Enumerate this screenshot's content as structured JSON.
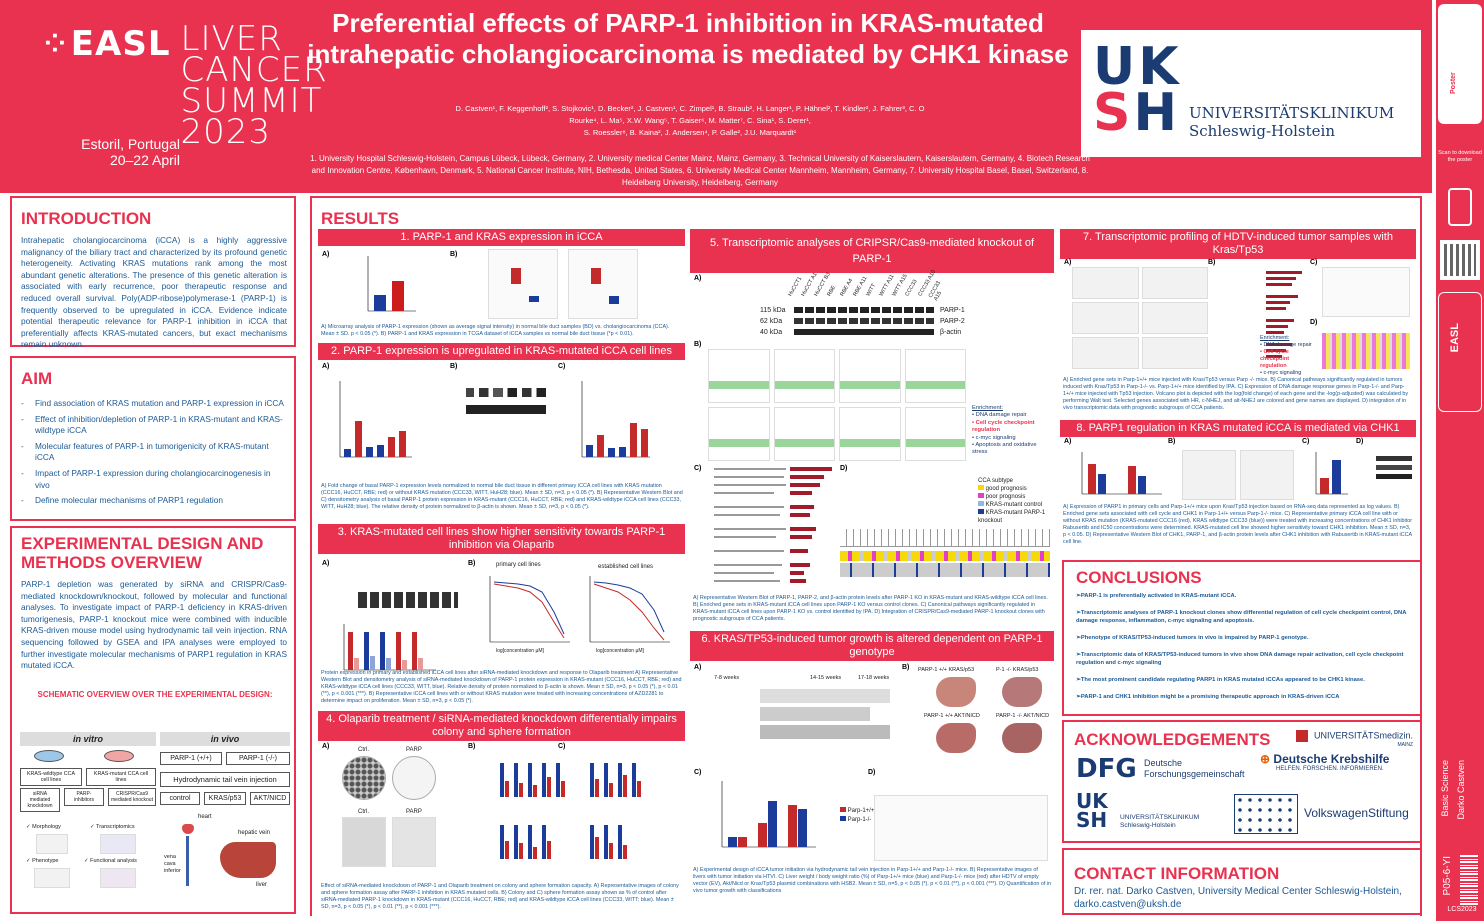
{
  "header": {
    "title": "Preferential effects of PARP-1 inhibition in KRAS-mutated intrahepatic cholangiocarcinoma is mediated by CHK1 kinase",
    "authors_line1": "D. Castven¹, F. Keggenhoff², S. Stojkovic¹, D. Becker², J. Castven¹, C. Zimpel¹, B. Straub², H. Langer¹, P. Hähnel², T. Kindler², J. Fahrer³, C. O",
    "authors_line2": "Rourke⁴, L. Ma⁵, X.W. Wang⁵, T. Gaiser⁶, M. Matter⁷, C. Sina¹, S. Derer¹,",
    "authors_line3": "S. Roessler⁸, B. Kaina², J. Andersen⁴, P. Galle², J.U. Marquardt¹",
    "affiliations": "1. University Hospital Schleswig-Holstein, Campus Lübeck, Lübeck, Germany, 2. University medical Center Mainz, Mainz, Germany, 3. Technical University of Kaiserslautern, Kaiserslautern, Germany, 4. Biotech Research and Innovation Centre, København, Denmark, 5. National Cancer Institute, NIH, Bethesda, United States, 6. University Medical Center Mannheim, Mannheim, Germany, 7. University Hospital Basel, Basel, Switzerland, 8. Heidelberg University, Heidelberg, Germany"
  },
  "easl": {
    "mark": "EASL",
    "event1": "LIVER",
    "event2": "CANCER",
    "event3": "SUMMIT",
    "location": "Estoril, Portugal",
    "dates": "20–22 April",
    "year": "2023"
  },
  "uksh": {
    "line1": "UK",
    "line2": "SH",
    "name1": "UNIVERSITÄTSKLINIKUM",
    "name2": "Schleswig-Holstein"
  },
  "sidebar": {
    "scan": "Scan to download the poster",
    "category": "Basic Science",
    "author": "Darko Castven",
    "poster_id": "P05-6-YI",
    "code": "LCS2023"
  },
  "introduction": {
    "title": "INTRODUCTION",
    "text": "Intrahepatic cholangiocarcinoma (iCCA) is a highly aggressive malignancy of the biliary tract and characterized by its profound genetic heterogeneity. Activating KRAS mutations rank among the most abundant genetic alterations. The presence of this genetic alteration is associated with early recurrence, poor therapeutic response and reduced overall survival. Poly(ADP-ribose)polymerase-1 (PARP-1) is frequently observed to be upregulated in iCCA. Evidence indicate potential therapeutic relevance for PARP-1 inhibition in iCCA that preferentially affects KRAS-mutated cancers, but exact mechanisms remain unknown."
  },
  "aim": {
    "title": "AIM",
    "items": [
      "Find association of KRAS mutation and PARP-1 expression in iCCA",
      "Effect of inhibition/depletion of PARP-1 in KRAS-mutant and KRAS-wildtype iCCA",
      "Molecular features of PARP-1 in tumorigenicity of KRAS-mutant iCCA",
      "Impact of PARP-1 expression during cholangiocarcinogenesis in vivo",
      "Define molecular mechanisms of PARP1 regulation"
    ]
  },
  "methods": {
    "title": "EXPERIMENTAL DESIGN AND METHODS OVERVIEW",
    "text": "PARP-1 depletion was generated by siRNA and CRISPR/Cas9-mediated knockdown/knockout, followed by molecular and functional analyses. To investigate impact of PARP-1 deficiency in KRAS-driven tumorigenesis, PARP-1 knockout mice were combined with inducible KRAS-driven mouse model using hydrodynamic tail vein injection. RNA sequencing followed by GSEA and IPA analyses were employed to further investigate molecular mechanisms of PARP1 regulation in KRAS mutated iCCA.",
    "schematic_title": "SCHEMATIC OVERVIEW  OVER THE EXPERIMENTAL DESIGN:",
    "in_vitro": "in vitro",
    "in_vivo": "in vivo",
    "wt_lines": "KRAS-wildtype CCA cell lines",
    "mut_lines": "KRAS-mutant CCA cell lines",
    "sirna": "siRNA mediated knockdown",
    "parp_inh": "PARP-inhibitors",
    "crispr": "CRISPR/Cas9 mediated knockout",
    "morph": "✓ Morphology",
    "transcript": "✓ Transcriptomics",
    "pheno": "✓ Phenotype",
    "func": "✓ Functional analysis",
    "parp_pos": "PARP-1 (+/+)",
    "parp_neg": "PARP-1 (-/-)",
    "hydro": "Hydrodynamic tail vein injection",
    "control": "control",
    "krasp53": "KRAS/p53",
    "aktnicd": "AKT/NICD",
    "heart": "heart",
    "hepatic": "hepatic vein",
    "vena": "vena cava inferior",
    "liver": "liver"
  },
  "results": {
    "title": "RESULTS",
    "s1": {
      "title": "1. PARP-1 and KRAS expression in iCCA",
      "caption": "A) Microarray analysis of PARP-1 expression (shown as average signal intensity) in normal bile duct samples (BD) vs. cholangiocarcinoma (CCA). Mean ± SD. p < 0.05 (*). B) PARP-1 and KRAS expression in TCGA dataset of iCCA samples vs normal bile duct tissue (*p < 0.01)."
    },
    "s2": {
      "title": "2. PARP-1 expression is upregulated in KRAS-mutated iCCA cell lines",
      "caption": "A) Fold change of basal PARP-1 expression levels normalized to normal bile duct tissue in different primary iCCA cell lines with KRAS mutation (CCC16, HuCCT, RBE; red) or without KRAS mutation (CCC33, WITT, HuH28; blue). Mean ± SD, n=3, p < 0.05 (*). B) Representative Western Blot and C) densitometry analysis of basal PARP-1 protein expression in KRAS-mutant (CCC16, HuCCT, RBE; red) and KRAS-wildtype iCCA cell lines (CCC33, WITT, HuH28; blue). The relative density of protein normalized to β-actin is shown. Mean ± SD, n=3, p < 0.05 (*)."
    },
    "s3": {
      "title": "3. KRAS-mutated cell lines show higher sensitivity towards PARP-1 inhibition via Olaparib",
      "caption": "Protein expression in primary and established iCCA cell lines after siRNA-mediated knockdown and response to Olaparib treatment A) Representative Western Blot and densitometry analysis of siRNA-mediated knockdown of PARP-1 protein expression in KRAS-mutant (CCC16, HuCCT, RBE; red) and KRAS-wildtype iCCA cell lines (CCC33, WITT, blue). Relative density of protein normalized to β-actin is shown. Mean ± SD, n=3, p < 0.05 (*), p < 0.01 (**), p < 0.001 (***). B) Representative iCCA cell lines with or without KRAS mutation were treated with increasing concentrations of AZD2281 to determine impact on proliferation. Mean ± SD, n=3, p < 0.05 (*).",
      "primary": "primary cell lines",
      "established": "established cell lines",
      "xlabel": "log[concentration µM]",
      "ylabel": "cell viability [% of control]"
    },
    "s4": {
      "title": "4. Olaparib treatment / siRNA-mediated knockdown differentially impairs colony and sphere formation",
      "caption": "Effect of siRNA-mediated knockdown of PARP-1 and Olaparib treatment on colony and sphere formation capacity. A) Representative images of colony and sphere formation assay after PARP-1 inhibition in KRAS mutated cells. B) Colony and C) sphere formation assay shown as % of control after siRNA-mediated PARP-1 knockdown in KRAS-mutant (CCC16, HuCCT, RBE; red) and KRAS-wildtype iCCA cell lines (CCC33, WITT; blue). Mean ± SD, n=3, p < 0.05 (*), p < 0.01 (**), p < 0.001 (***).",
      "ctrl": "Ctrl.",
      "parp": "PARP"
    },
    "s5": {
      "title": "5. Transcriptomic analyses of CRIPSR/Cas9-mediated knockout of PARP-1",
      "caption": "A) Representative Western Blot of PARP-1, PARP-2, and β-actin protein levels after PARP-1 KO in KRAS-mutant and KRAS-wildtype iCCA cell lines. B) Enriched gene sets in KRAS-mutant iCCA cell lines upon PARP-1 KO versus control clones. C) Canonical pathways significantly regulated in KRAS-mutant iCCA cell lines upon PARP-1 KO vs. control identified by IPA. D) Integration of CRISPR/Cas9-mediated PARP-1 knockout clones with prognostic subgroups of CCA patients.",
      "kda115": "115 kDa",
      "kda62": "62 kDa",
      "kda40": "40 kDa",
      "parp1": "PARP-1",
      "parp2": "PARP-2",
      "bactin": "β-actin",
      "lanes": [
        "HuCCT1",
        "HuCCT A1",
        "HuCCT B3",
        "RBE",
        "RBE A4",
        "RBE A11",
        "WITT",
        "WITT A11",
        "WITT A15",
        "CCC33",
        "CCC33 A10",
        "CCC33 A15"
      ],
      "enr_title": "Enrichment:",
      "enr1": "• DNA damage repair",
      "enr2": "• Cell cycle checkpoint regulation",
      "enr3": "• c-myc signaling",
      "enr4": "• Apoptosis and oxidative stress",
      "legend_title": "CCA subtype",
      "legend1": "good prognosis",
      "legend2": "poor prognosis",
      "legend3": "KRAS-mutant control",
      "legend4": "KRAS-mutant PARP-1 knockout"
    },
    "s6": {
      "title": "6. KRAS/TP53-induced tumor growth is altered dependent on PARP-1 genotype",
      "caption": "A) Experimental design of iCCA tumor initiation via hydrodynamic tail vein injection in Parp-1+/+ and Parp-1-/- mice. B) Representative images of livers with tumor initiation via HTVI. C) Liver weight / body weight ratio (%) of Parp-1+/+ mice (blue) and Parp-1-/- mice (red) after HDTV of empty vector (EV), Akt/Nicd or Kras/Tp53 plasmid combinations with HSB2. Mean ± SD, n=5, p < 0.05 (*), p < 0.01 (**), p < 0.001 (***). D) Quantification of in vivo tumor growth with classifications",
      "weeks1": "7-8 weeks",
      "weeks2": "14-15 weeks",
      "weeks3": "17-18 weeks",
      "liver_a": "PARP-1 +/+ KRAS/p53",
      "liver_b": "P-1 -/- KRAS/p53",
      "liver_c": "PARP-1 +/+ AKT/NICD",
      "liver_d": "PARP-1 -/- AKT/NICD",
      "legend_pos": "Parp-1+/+",
      "legend_neg": "Parp-1-/-",
      "ylabel": "% liver weight / body weight"
    },
    "s7": {
      "title": "7. Transcriptomic profiling of HDTV-induced tumor samples with Kras/Tp53",
      "caption": "A) Enriched gene sets in Parp-1+/+ mice injected with Kras/Tp53 versus Parp -/- mice. B) Canonical pathways significantly regulated in tumors induced with Kras/Tp53 in Parp-1-/- vs. Parp-1+/+ mice identified by IPA. C) Expression of DNA damage response genes in Parp-1-/- and Parp-1+/+ mice injected with Tp53 injection. Volcano plot is depicted with the log(fold change) of each gene and the -log(p-adjusted) was calculated by performing Walt test. Selected genes associated with HR, c-NHEJ, and alt-NHEJ are colored and gene names are displayed. D) integration of in vivo transcriptomic data with prognostic subgroups of CCA patients.",
      "enr_title": "Enrichment:",
      "enr1": "• DNA damage repair",
      "enr2": "• Cell cycle checkpoint regulation",
      "enr3": "• c-myc signaling"
    },
    "s8": {
      "title": "8. PARP1 regulation in KRAS mutated iCCA is mediated via CHK1",
      "caption": "A) Expression of PARP1 in primary cells and Parp-1+/+ mice upon Kras/Tp53 injection based on RNA-seq data represented as log values. B) Enriched gene sets associated with cell cycle and CHK1 in Parp-1+/+ versus Parp-1-/- mice. C) Representative primary iCCA cell line with or without KRAS mutation (KRAS-mutated CCC16 (red), KRAS wildtype CCC33 (blue)) were treated with increasing concentrations of CHK1 inhibitor Rabusertib and IC50 concentrations were determined. KRAS-mutated cell line showed higher sensitivity toward CHK1 inhibition. Mean ± SD, n=3, p < 0.05. D) Representative Western Blot of CHK1, PARP-1, and β-actin protein levels after CHK1 inhibition with Rabusertib in KRAS-mutant iCCA cell line."
    }
  },
  "conclusions": {
    "title": "CONCLUSIONS",
    "items": [
      "➢PARP-1 is preferentially activated in KRAS-mutant iCCA.",
      "➢Transcriptomic analyses of PARP-1 knockout clones show differential regulation of cell cycle checkpoint control, DNA damage response, inflammation, c-myc signaling and apoptosis.",
      "➢Phenotype of KRAS/TP53-induced tumors in vivo is impaired by PARP-1 genotype.",
      "➢Transcriptomic data of KRAS/TP53-induced tumors in vivo show DNA damage repair activation, cell cycle checkpoint regulation and c-myc signaling",
      "➢The most prominent candidate regulating PARP1 in KRAS mutated iCCAs appeared to be CHK1 kinase.",
      "➢PARP-1 and CHK1 inhibition might be a promising therapeutic approach in KRAS-driven iCCA"
    ]
  },
  "acknowledgements": {
    "title": "ACKNOWLEDGEMENTS",
    "dfg": "DFG",
    "dfg_name1": "Deutsche",
    "dfg_name2": "Forschungsgemeinschaft",
    "krebshilfe1": "Deutsche Krebshilfe",
    "krebshilfe2": "HELFEN. FORSCHEN. INFORMIEREN.",
    "mainz": "UNIVERSITÄTSmedizin.",
    "mainz2": "MAINZ",
    "vw": "VolkswagenStiftung"
  },
  "contact": {
    "title": "CONTACT INFORMATION",
    "line1": "Dr. rer. nat. Darko Castven, University Medical Center Schleswig-Holstein,",
    "line2": "darko.castven@uksh.de"
  },
  "colors": {
    "accent": "#e8324f",
    "navy": "#1b3c72",
    "text_blue": "#1b5a96"
  }
}
